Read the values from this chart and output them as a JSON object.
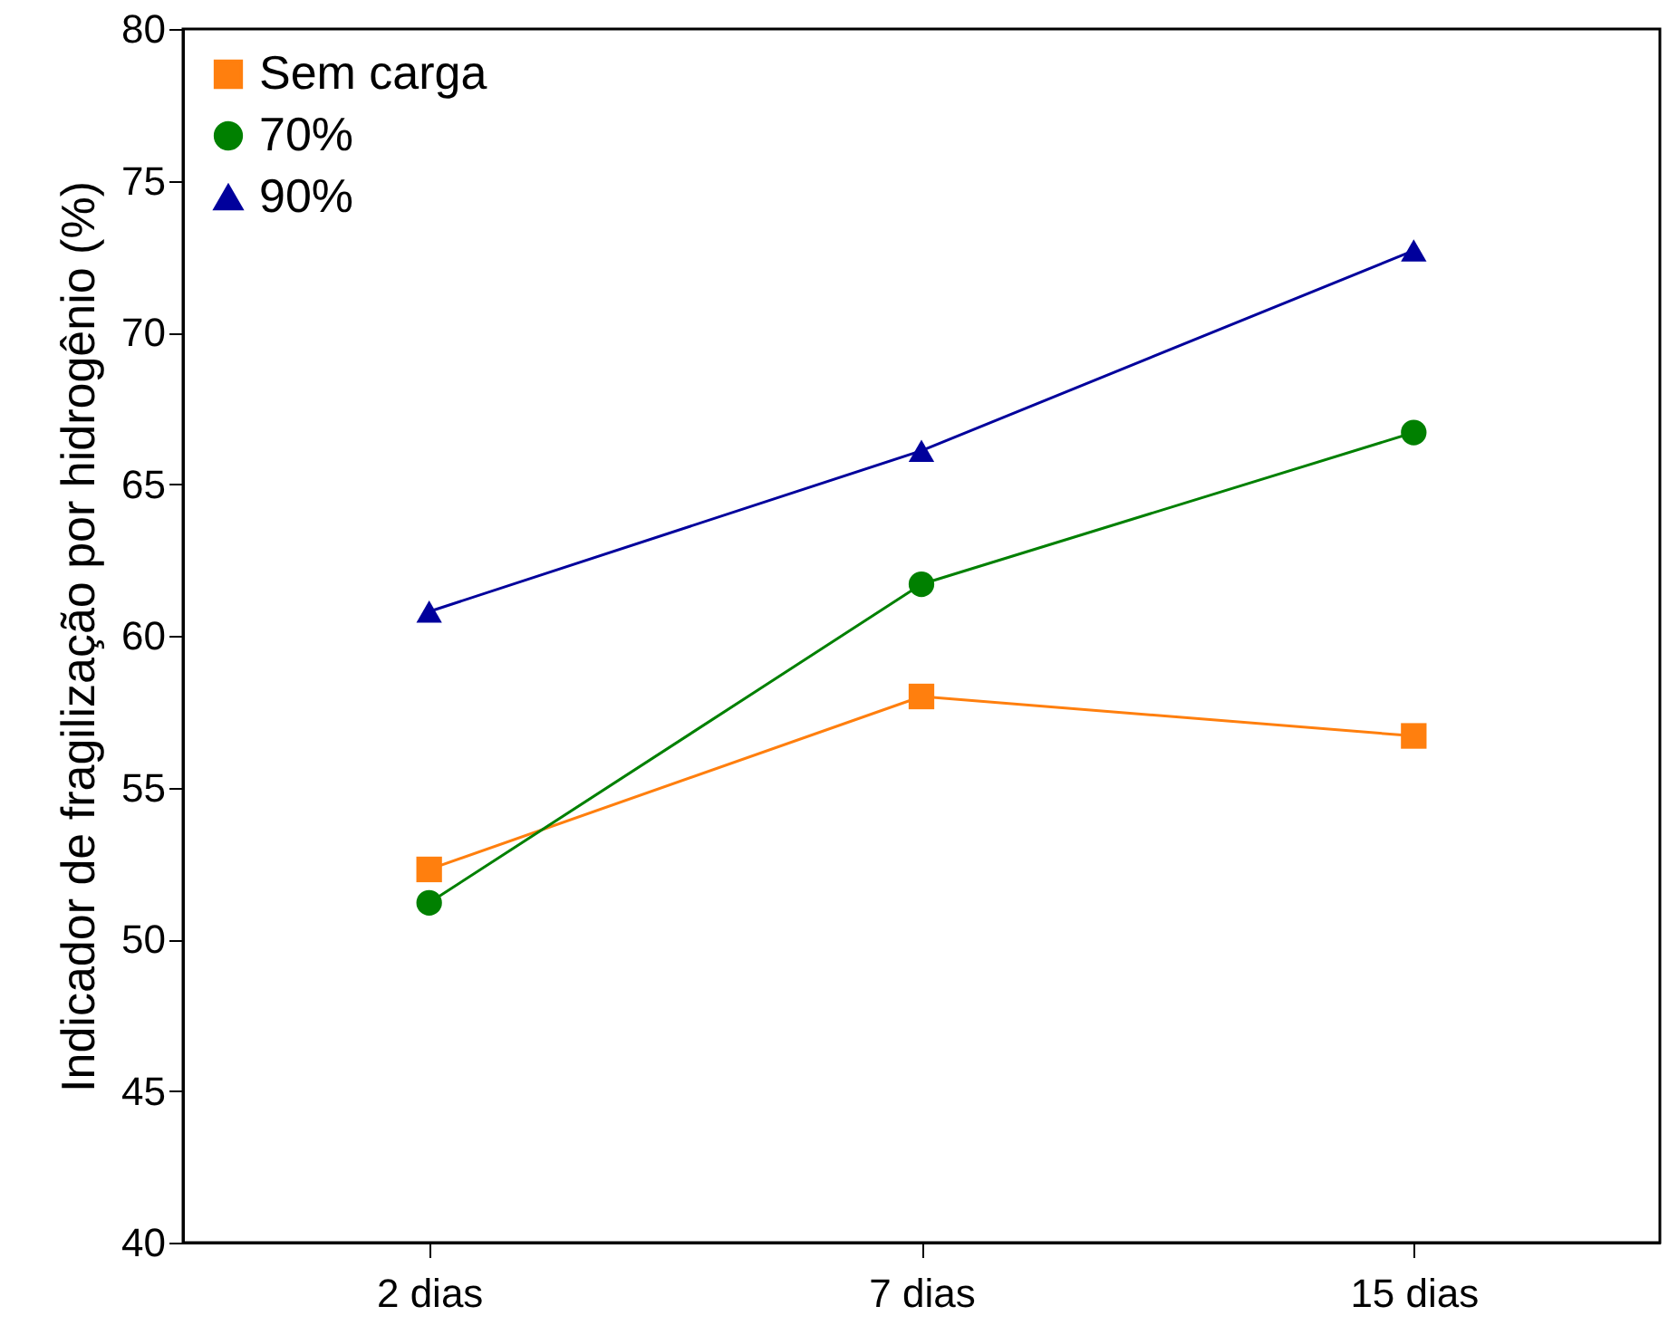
{
  "chart_data": {
    "type": "line",
    "ylabel": "Indicador de fragilização por hidrogênio (%)",
    "categories": [
      "2 dias",
      "7 dias",
      "15 dias"
    ],
    "series": [
      {
        "name": "Sem carga",
        "color": "#ff7f0e",
        "marker": "square",
        "values": [
          52.3,
          58.0,
          56.7
        ]
      },
      {
        "name": "70%",
        "color": "#008000",
        "marker": "circle",
        "values": [
          51.2,
          61.7,
          66.7
        ]
      },
      {
        "name": "90%",
        "color": "#00009c",
        "marker": "triangle",
        "values": [
          60.8,
          66.1,
          72.7
        ]
      }
    ],
    "ylim": [
      40,
      80
    ],
    "yticks": [
      40,
      45,
      50,
      55,
      60,
      65,
      70,
      75,
      80
    ],
    "grid": false,
    "legend": "top left",
    "line_style": "solid"
  }
}
